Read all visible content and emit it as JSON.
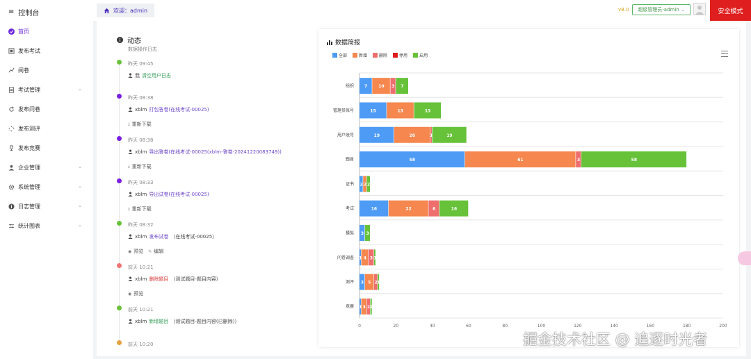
{
  "sidebar": {
    "title": "控制台",
    "items": [
      {
        "label": "首页",
        "icon": "home-check-icon",
        "active": true
      },
      {
        "label": "发布考试",
        "icon": "exam-icon"
      },
      {
        "label": "阅卷",
        "icon": "grading-icon"
      },
      {
        "label": "考试管理",
        "icon": "document-icon",
        "expandable": true
      },
      {
        "label": "发布问卷",
        "icon": "refresh-icon"
      },
      {
        "label": "发布测评",
        "icon": "loading-icon"
      },
      {
        "label": "发布竞赛",
        "icon": "trophy-icon"
      },
      {
        "label": "企业管理",
        "icon": "user-icon",
        "expandable": true
      },
      {
        "label": "系统管理",
        "icon": "gear-icon",
        "expandable": true
      },
      {
        "label": "日志管理",
        "icon": "info-icon",
        "expandable": true
      },
      {
        "label": "统计图表",
        "icon": "sliders-icon",
        "expandable": true
      }
    ]
  },
  "topbar": {
    "welcome": "欢迎：admin",
    "version": "v8.0",
    "admin_label": "超级管理员-admin",
    "safe_mode": "安全模式"
  },
  "activity": {
    "title": "动态",
    "subtitle": "数据操作日志",
    "entries": [
      {
        "time": "昨天 09:45",
        "color": "#67c23a",
        "user": "我",
        "link": "清空用户日志",
        "link_style": "green",
        "tail": "",
        "actions": []
      },
      {
        "time": "昨天 08:38",
        "color": "#7a1ee0",
        "user": "xblm",
        "link": "打包答卷(在线考试-00025)",
        "link_style": "purple",
        "tail": "",
        "actions": [
          "重新下载"
        ]
      },
      {
        "time": "昨天 08:38",
        "color": "#7a1ee0",
        "user": "xblm",
        "link": "导出答卷(在线考试-00025(xblm-答卷-20241220083749))",
        "link_style": "purple",
        "tail": "",
        "actions": [
          "重新下载"
        ]
      },
      {
        "time": "昨天 08:33",
        "color": "#7a1ee0",
        "user": "xblm",
        "link": "导出试卷(在线考试-00025)",
        "link_style": "purple",
        "tail": "",
        "actions": [
          "重新下载"
        ]
      },
      {
        "time": "昨天 08:32",
        "color": "#67c23a",
        "user": "xblm",
        "link": "发布试卷",
        "link_style": "purple",
        "tail": "（在线考试-00025）",
        "actions": [
          "预览",
          "编辑"
        ]
      },
      {
        "time": "前天 10:21",
        "color": "#f07474",
        "user": "xblm",
        "link": "删除题目",
        "link_style": "red",
        "tail": "（测试题目-题目内容）",
        "actions": [
          "预览"
        ]
      },
      {
        "time": "前天 10:21",
        "color": "#67c23a",
        "user": "xblm",
        "link": "新增题目",
        "link_style": "green",
        "tail": "（测试题目-题目内容(已删除)）",
        "actions": []
      },
      {
        "time": "前天 10:20",
        "color": "#e6a23c",
        "user": "",
        "link": "",
        "link_style": "",
        "tail": "",
        "actions": []
      }
    ]
  },
  "chart_card": {
    "title": "数据简报",
    "menu_icon": "hamburger-menu-icon"
  },
  "chart_data": {
    "type": "bar",
    "orientation": "horizontal",
    "stacked": true,
    "categories": [
      "组织",
      "管理员账号",
      "用户账号",
      "题目",
      "证书",
      "考试",
      "模拟",
      "问卷调查",
      "测评",
      "竞赛"
    ],
    "series": [
      {
        "name": "全部",
        "color": "#4e9bf5",
        "values": [
          7,
          15,
          19,
          58,
          2,
          16,
          3,
          1,
          3,
          1
        ]
      },
      {
        "name": "新增",
        "color": "#f5874f",
        "values": [
          10,
          15,
          20,
          61,
          2,
          22,
          0,
          4,
          5,
          3
        ]
      },
      {
        "name": "删除",
        "color": "#ee6e6e",
        "values": [
          3,
          0,
          1,
          3,
          0,
          6,
          0,
          3,
          2,
          2
        ]
      },
      {
        "name": "停用",
        "color": "#e01b1b",
        "values": [
          0,
          0,
          0,
          0,
          0,
          0,
          0,
          0,
          0,
          0
        ]
      },
      {
        "name": "启用",
        "color": "#67c23a",
        "values": [
          7,
          15,
          19,
          58,
          2,
          16,
          3,
          1,
          1,
          1
        ]
      }
    ],
    "xlim": [
      0,
      200
    ],
    "xticks": [
      0,
      20,
      40,
      60,
      80,
      100,
      120,
      140,
      160,
      180,
      200
    ],
    "grid": true,
    "legend": "top-left"
  },
  "watermark": "掘金技术社区 @ 追逐时光者"
}
